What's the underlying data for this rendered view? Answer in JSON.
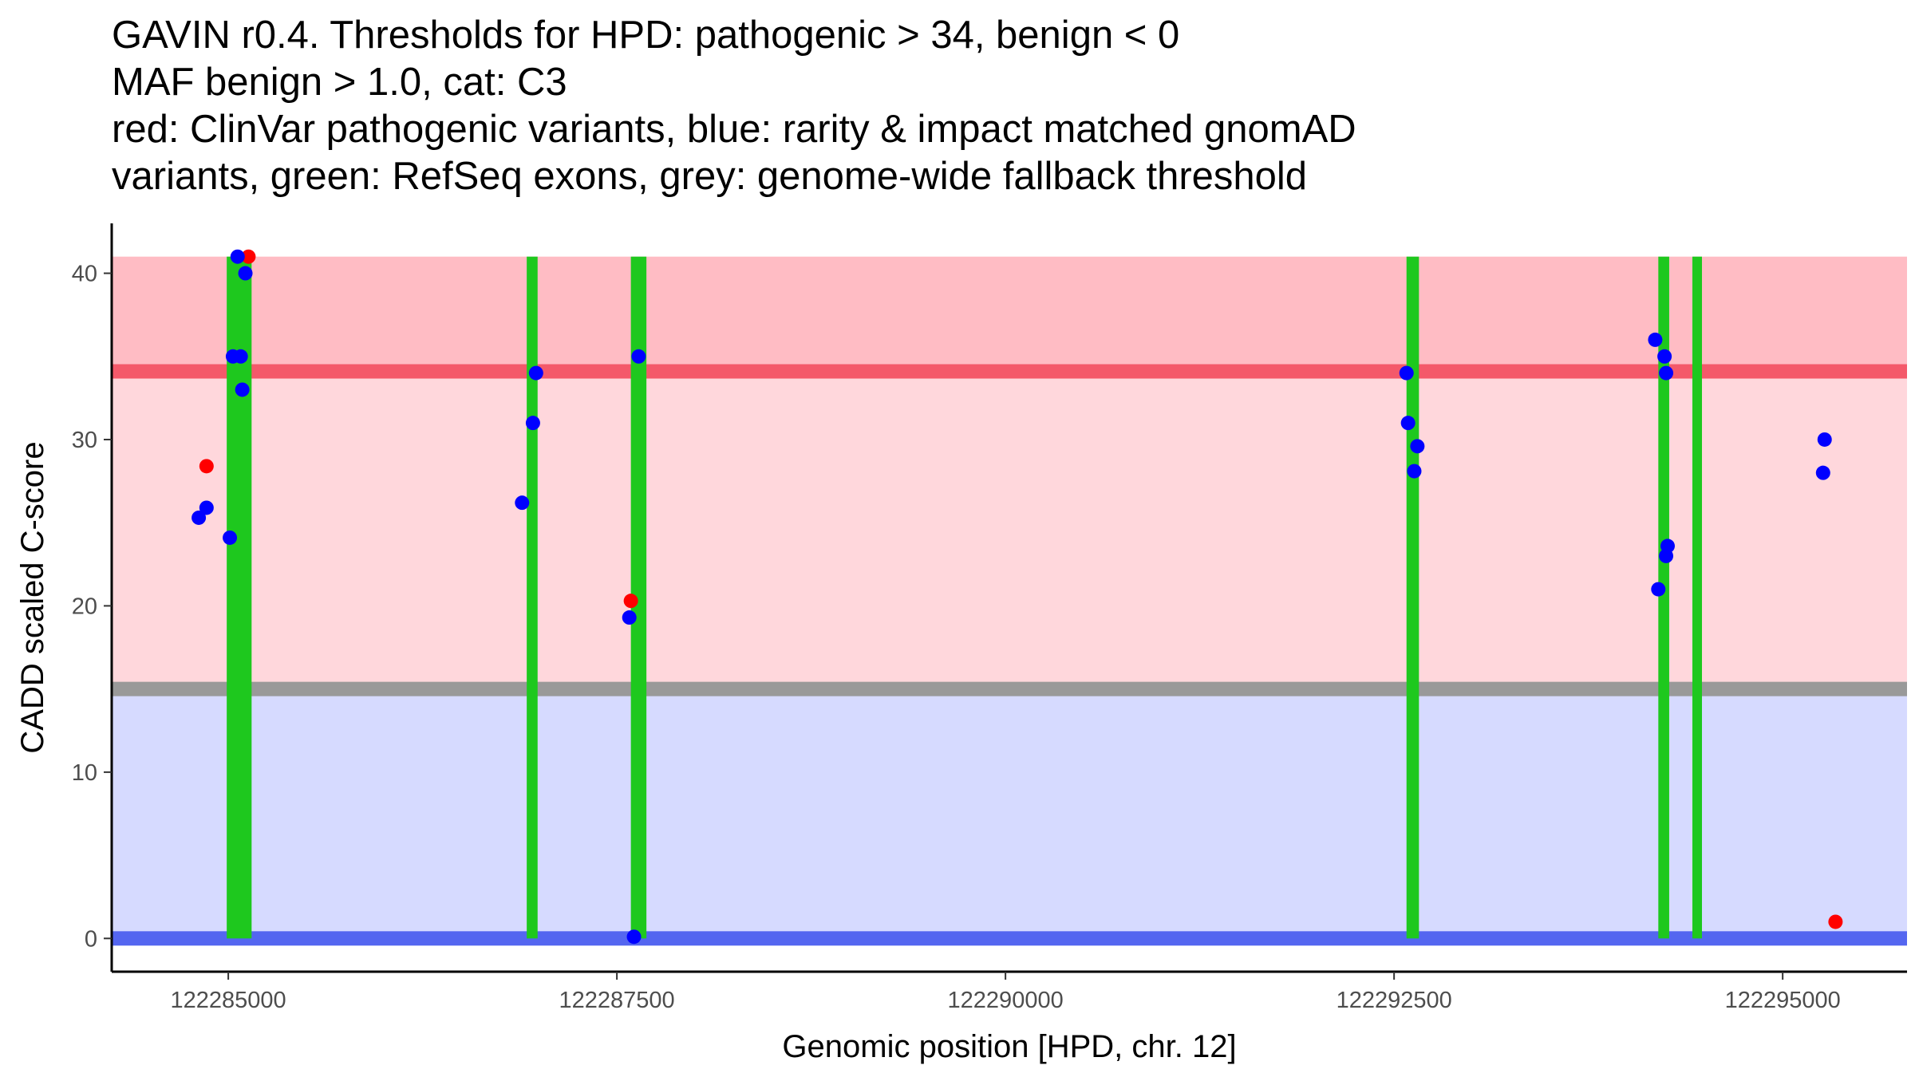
{
  "chart_data": {
    "type": "scatter",
    "title_lines": [
      "GAVIN r0.4. Thresholds for HPD: pathogenic > 34, benign < 0",
      "MAF benign > 1.0, cat: C3",
      "red: ClinVar pathogenic variants, blue: rarity & impact matched gnomAD",
      "variants, green: RefSeq exons, grey: genome-wide fallback threshold"
    ],
    "xlabel": "Genomic position [HPD, chr. 12]",
    "ylabel": "CADD scaled C-score",
    "xlim": [
      122284250,
      122295800
    ],
    "ylim": [
      -2,
      43
    ],
    "x_ticks": [
      {
        "value": 122285000,
        "label": "122285000"
      },
      {
        "value": 122287500,
        "label": "122287500"
      },
      {
        "value": 122290000,
        "label": "122290000"
      },
      {
        "value": 122292500,
        "label": "122292500"
      },
      {
        "value": 122295000,
        "label": "122295000"
      }
    ],
    "y_ticks": [
      {
        "value": 0,
        "label": "0"
      },
      {
        "value": 10,
        "label": "10"
      },
      {
        "value": 20,
        "label": "20"
      },
      {
        "value": 30,
        "label": "30"
      },
      {
        "value": 40,
        "label": "40"
      }
    ],
    "bands": [
      {
        "name": "pathogenic-range",
        "y_from": 34,
        "y_to": 41,
        "color": "#ffbcc4"
      },
      {
        "name": "intermediate-range",
        "y_from": 15,
        "y_to": 34,
        "color": "#ffd7dc"
      },
      {
        "name": "benign-range",
        "y_from": 0,
        "y_to": 15,
        "color": "#d6daff"
      }
    ],
    "threshold_lines": [
      {
        "name": "pathogenic-threshold",
        "y": 34.1,
        "color": "#f4596a"
      },
      {
        "name": "fallback-threshold",
        "y": 15.0,
        "color": "#999999"
      },
      {
        "name": "benign-threshold",
        "y": 0.0,
        "color": "#5466f0"
      }
    ],
    "exons": [
      {
        "start": 122284990,
        "end": 122285150
      },
      {
        "start": 122286920,
        "end": 122286990
      },
      {
        "start": 122287590,
        "end": 122287690
      },
      {
        "start": 122292580,
        "end": 122292660
      },
      {
        "start": 122294200,
        "end": 122294270
      },
      {
        "start": 122294430,
        "end": 122294470
      }
    ],
    "exon_color": "#1ec81e",
    "exon_y_range": [
      0,
      41
    ],
    "series": [
      {
        "name": "ClinVar pathogenic variants",
        "color": "#ff0000",
        "points": [
          {
            "x": 122284860,
            "y": 28.4
          },
          {
            "x": 122285130,
            "y": 41.0
          },
          {
            "x": 122287590,
            "y": 20.3
          },
          {
            "x": 122295340,
            "y": 1.0
          }
        ]
      },
      {
        "name": "rarity & impact matched gnomAD variants",
        "color": "#0000ff",
        "points": [
          {
            "x": 122284810,
            "y": 25.3
          },
          {
            "x": 122284860,
            "y": 25.9
          },
          {
            "x": 122285010,
            "y": 24.1
          },
          {
            "x": 122285030,
            "y": 35.0
          },
          {
            "x": 122285060,
            "y": 41.0
          },
          {
            "x": 122285080,
            "y": 35.0
          },
          {
            "x": 122285090,
            "y": 33.0
          },
          {
            "x": 122285110,
            "y": 40.0
          },
          {
            "x": 122286890,
            "y": 26.2
          },
          {
            "x": 122286960,
            "y": 31.0
          },
          {
            "x": 122286980,
            "y": 34.0
          },
          {
            "x": 122287580,
            "y": 19.3
          },
          {
            "x": 122287610,
            "y": 0.1
          },
          {
            "x": 122287640,
            "y": 35.0
          },
          {
            "x": 122292580,
            "y": 34.0
          },
          {
            "x": 122292590,
            "y": 31.0
          },
          {
            "x": 122292630,
            "y": 28.1
          },
          {
            "x": 122292650,
            "y": 29.6
          },
          {
            "x": 122294180,
            "y": 36.0
          },
          {
            "x": 122294200,
            "y": 21.0
          },
          {
            "x": 122294240,
            "y": 35.0
          },
          {
            "x": 122294250,
            "y": 34.0
          },
          {
            "x": 122294250,
            "y": 23.0
          },
          {
            "x": 122294260,
            "y": 23.6
          },
          {
            "x": 122295260,
            "y": 28.0
          },
          {
            "x": 122295270,
            "y": 30.0
          }
        ]
      }
    ]
  }
}
